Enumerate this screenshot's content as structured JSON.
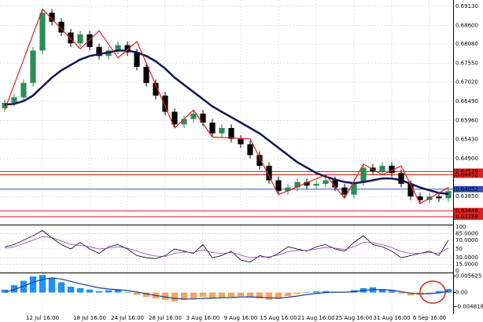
{
  "chart_data": [
    {
      "type": "candlestick",
      "categories": [
        null,
        null,
        null,
        null,
        "12 Jul 16:00",
        null,
        null,
        null,
        null,
        "18 Jul 16:00",
        null,
        null,
        null,
        "24 Jul 16:00",
        null,
        null,
        null,
        "28 Jul 16:00",
        null,
        null,
        null,
        "3 Aug 16:00",
        null,
        null,
        null,
        "9 Aug 16:00",
        null,
        null,
        null,
        "15 Aug 16:00",
        null,
        null,
        null,
        "21 Aug 16:00",
        null,
        null,
        null,
        "25 Aug 16:00",
        null,
        null,
        null,
        "31 Aug 16:00",
        null,
        null,
        null,
        "6 Sep 16:00",
        null,
        null
      ],
      "open": [
        0.663,
        0.6645,
        0.666,
        0.67,
        0.679,
        0.6895,
        0.687,
        0.684,
        0.681,
        0.6835,
        0.68,
        0.6775,
        0.679,
        0.6805,
        0.6785,
        0.6745,
        0.67,
        0.6665,
        0.662,
        0.6585,
        0.66,
        0.6615,
        0.659,
        0.656,
        0.6575,
        0.6545,
        0.653,
        0.65,
        0.647,
        0.643,
        0.64,
        0.641,
        0.6425,
        0.6415,
        0.642,
        0.643,
        0.641,
        0.639,
        0.6425,
        0.6465,
        0.6455,
        0.647,
        0.645,
        0.642,
        0.6385,
        0.6375,
        0.6385,
        0.638
      ],
      "high": [
        0.6655,
        0.667,
        0.671,
        0.68,
        0.6905,
        0.6905,
        0.688,
        0.685,
        0.6845,
        0.6845,
        0.681,
        0.68,
        0.6815,
        0.6815,
        0.6795,
        0.6755,
        0.671,
        0.6675,
        0.663,
        0.661,
        0.6625,
        0.6625,
        0.66,
        0.6585,
        0.6585,
        0.6555,
        0.654,
        0.651,
        0.648,
        0.644,
        0.642,
        0.6435,
        0.6435,
        0.643,
        0.644,
        0.644,
        0.642,
        0.6435,
        0.6475,
        0.6475,
        0.648,
        0.648,
        0.646,
        0.643,
        0.6395,
        0.6395,
        0.6395,
        0.641
      ],
      "low": [
        0.662,
        0.6635,
        0.665,
        0.669,
        0.678,
        0.686,
        0.683,
        0.68,
        0.68,
        0.679,
        0.6765,
        0.6765,
        0.678,
        0.6775,
        0.6735,
        0.669,
        0.6655,
        0.661,
        0.6575,
        0.6575,
        0.659,
        0.658,
        0.655,
        0.655,
        0.6535,
        0.652,
        0.649,
        0.646,
        0.642,
        0.639,
        0.639,
        0.64,
        0.6405,
        0.6405,
        0.641,
        0.64,
        0.638,
        0.638,
        0.6415,
        0.6445,
        0.6445,
        0.644,
        0.641,
        0.6375,
        0.6365,
        0.6365,
        0.637,
        0.637
      ],
      "close": [
        0.6645,
        0.666,
        0.67,
        0.679,
        0.6895,
        0.687,
        0.684,
        0.681,
        0.6835,
        0.68,
        0.6775,
        0.679,
        0.6805,
        0.6785,
        0.6745,
        0.67,
        0.6665,
        0.662,
        0.6585,
        0.66,
        0.6615,
        0.659,
        0.656,
        0.6575,
        0.6545,
        0.653,
        0.65,
        0.647,
        0.643,
        0.64,
        0.641,
        0.6425,
        0.6415,
        0.642,
        0.643,
        0.641,
        0.639,
        0.6425,
        0.6465,
        0.6455,
        0.647,
        0.645,
        0.642,
        0.6385,
        0.6375,
        0.6385,
        0.638,
        0.64
      ],
      "up_color": "#2e8b57",
      "down_color": "#000000",
      "series": [
        {
          "color": "#141456",
          "values": [
            0.664,
            0.6642,
            0.665,
            0.6665,
            0.669,
            0.6715,
            0.6735,
            0.675,
            0.6765,
            0.6775,
            0.678,
            0.6785,
            0.679,
            0.679,
            0.6785,
            0.6775,
            0.676,
            0.674,
            0.6715,
            0.6695,
            0.6675,
            0.6655,
            0.6635,
            0.662,
            0.6605,
            0.659,
            0.6575,
            0.656,
            0.654,
            0.652,
            0.65,
            0.648,
            0.6465,
            0.645,
            0.644,
            0.6432,
            0.6425,
            0.6422,
            0.6425,
            0.643,
            0.6435,
            0.6435,
            0.643,
            0.642,
            0.641,
            0.6402,
            0.6395,
            0.6392
          ]
        }
      ],
      "zigzag": {
        "color": "#e02020",
        "x": [
          0,
          4,
          8,
          10,
          12,
          14,
          18,
          20,
          22,
          26,
          29,
          34,
          36,
          38,
          40,
          42,
          44,
          47
        ],
        "values": [
          0.6625,
          0.6905,
          0.6795,
          0.6845,
          0.677,
          0.6815,
          0.6575,
          0.6625,
          0.655,
          0.6545,
          0.639,
          0.6445,
          0.638,
          0.6475,
          0.6445,
          0.647,
          0.6365,
          0.641
        ]
      },
      "levels": [
        {
          "value": 0.64539,
          "label": "0.64539",
          "color": "#e02020"
        },
        {
          "value": 0.64452,
          "label": "0.64452",
          "color": "#e02020"
        },
        {
          "value": 0.64052,
          "label": "0.64052",
          "color": "#3050c0"
        },
        {
          "value": 0.63446,
          "label": "0.63446",
          "color": "#e02020"
        },
        {
          "value": 0.63288,
          "label": "0.63288",
          "color": "#e02020"
        }
      ],
      "ylim": [
        0.6309,
        0.6926
      ],
      "yticks": [
        {
          "value": 0.6913,
          "label": "0.69130"
        },
        {
          "value": 0.686,
          "label": "0.68600"
        },
        {
          "value": 0.6808,
          "label": "0.68080"
        },
        {
          "value": 0.6755,
          "label": "0.67550"
        },
        {
          "value": 0.6702,
          "label": "0.67020"
        },
        {
          "value": 0.6649,
          "label": "0.66490"
        },
        {
          "value": 0.6596,
          "label": "0.65960"
        },
        {
          "value": 0.6543,
          "label": "0.65430"
        },
        {
          "value": 0.649,
          "label": "0.64900"
        },
        {
          "value": 0.6385,
          "label": "0.63850"
        }
      ],
      "grid": true
    },
    {
      "type": "line",
      "series": [
        {
          "color": "#000000",
          "values": [
            55,
            60,
            70,
            80,
            92,
            75,
            60,
            50,
            65,
            50,
            40,
            55,
            60,
            50,
            35,
            30,
            28,
            35,
            50,
            45,
            40,
            60,
            30,
            35,
            45,
            25,
            20,
            35,
            30,
            40,
            55,
            50,
            45,
            55,
            60,
            50,
            45,
            65,
            80,
            60,
            55,
            45,
            30,
            35,
            40,
            45,
            35,
            70
          ]
        },
        {
          "color": "#9040c0",
          "values": [
            52,
            55,
            62,
            70,
            78,
            76,
            68,
            60,
            58,
            55,
            50,
            52,
            55,
            52,
            45,
            38,
            34,
            33,
            40,
            43,
            42,
            48,
            42,
            40,
            42,
            36,
            30,
            32,
            32,
            36,
            44,
            47,
            46,
            50,
            54,
            52,
            49,
            55,
            65,
            64,
            60,
            53,
            44,
            40,
            40,
            42,
            40,
            52
          ]
        }
      ],
      "ylim": [
        0,
        100
      ],
      "yticks": [
        100,
        {
          "value": 85,
          "label": "85.0000"
        },
        {
          "value": 70,
          "label": "70.0000"
        },
        50,
        {
          "value": 30,
          "label": "30.0000"
        },
        {
          "value": 15,
          "label": "15.0000"
        },
        0
      ],
      "grid": true
    },
    {
      "type": "histogram_line",
      "values": [
        0.001,
        0.0025,
        0.004,
        0.0055,
        0.006,
        0.005,
        0.0035,
        0.002,
        0.0015,
        0.001,
        0.0005,
        0.0008,
        0.001,
        0.0002,
        -0.0008,
        -0.0015,
        -0.002,
        -0.0025,
        -0.003,
        -0.0025,
        -0.002,
        -0.0015,
        -0.002,
        -0.0018,
        -0.0015,
        -0.0012,
        -0.0015,
        -0.002,
        -0.0025,
        -0.0022,
        -0.0012,
        -0.0005,
        0.0002,
        0.0004,
        0.0005,
        0.0003,
        0.0001,
        0.0008,
        0.0015,
        0.0018,
        0.0012,
        0.0006,
        -0.0004,
        -0.001,
        -0.0008,
        -0.0003,
        0.0005,
        0.0012
      ],
      "up_color": "#1e90ff",
      "down_color": "#f4a460",
      "series": [
        {
          "color": "#1a3a8a",
          "values": [
            0,
            0.001,
            0.0022,
            0.0035,
            0.0045,
            0.005,
            0.0046,
            0.0038,
            0.003,
            0.0023,
            0.0016,
            0.0012,
            0.001,
            0.0007,
            0.0002,
            -0.0004,
            -0.001,
            -0.0015,
            -0.002,
            -0.0022,
            -0.0022,
            -0.002,
            -0.0019,
            -0.0018,
            -0.0017,
            -0.0015,
            -0.0015,
            -0.0016,
            -0.0018,
            -0.0019,
            -0.0016,
            -0.0012,
            -0.0007,
            -0.0003,
            0,
            0.0001,
            0.0001,
            0.0003,
            0.0007,
            0.001,
            0.001,
            0.0008,
            0.0003,
            -0.0002,
            -0.0004,
            -0.0004,
            -0.0001,
            0.0004
          ]
        }
      ],
      "ylim": [
        -0.0071,
        0.0063
      ],
      "yticks": [
        {
          "value": 0.005625,
          "label": "0.005625"
        },
        {
          "value": 0,
          "label": "0.00"
        },
        {
          "value": -0.004818,
          "label": "-0.004818"
        }
      ],
      "grid": false
    }
  ]
}
